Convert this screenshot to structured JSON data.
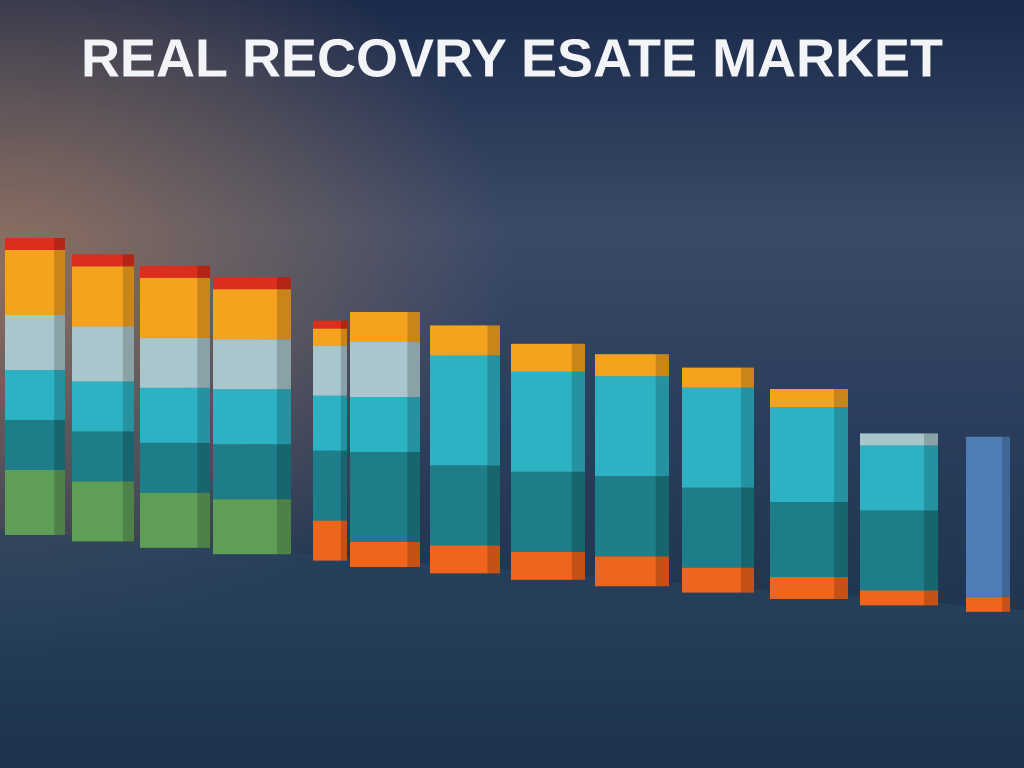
{
  "chart_data": {
    "type": "stacked-bar",
    "title": "REAL RECOVRY ESATE  MARKET",
    "categories": [
      null,
      null,
      null,
      null,
      null,
      null,
      null,
      null,
      null,
      null,
      null,
      null,
      null
    ],
    "series": [
      {
        "color": "#f0651c",
        "values": [
          null,
          null,
          null,
          null,
          40,
          25,
          28,
          28,
          30,
          25,
          22,
          15,
          15
        ]
      },
      {
        "color": "#5f9e57",
        "values": [
          65,
          60,
          55,
          55,
          null,
          null,
          null,
          null,
          null,
          null,
          null,
          null,
          null
        ]
      },
      {
        "color": "#1d7d88",
        "values": [
          50,
          50,
          50,
          55,
          70,
          90,
          80,
          80,
          80,
          80,
          75,
          80,
          null
        ]
      },
      {
        "color": "#2db2c4",
        "values": [
          50,
          50,
          55,
          55,
          55,
          55,
          110,
          100,
          100,
          100,
          95,
          65,
          null
        ]
      },
      {
        "color": "#a9c6cc",
        "values": [
          55,
          55,
          50,
          50,
          50,
          55,
          null,
          null,
          null,
          null,
          null,
          12,
          null
        ]
      },
      {
        "color": "#f5a31f",
        "values": [
          65,
          60,
          60,
          50,
          17,
          30,
          30,
          28,
          22,
          20,
          18,
          null,
          null
        ]
      },
      {
        "color": "#dc2e1c",
        "values": [
          12,
          12,
          12,
          12,
          8,
          null,
          null,
          null,
          null,
          null,
          null,
          null,
          null
        ]
      },
      {
        "color": "#4f7db5",
        "values": [
          null,
          null,
          null,
          null,
          null,
          null,
          null,
          null,
          null,
          null,
          null,
          null,
          160
        ]
      }
    ]
  }
}
